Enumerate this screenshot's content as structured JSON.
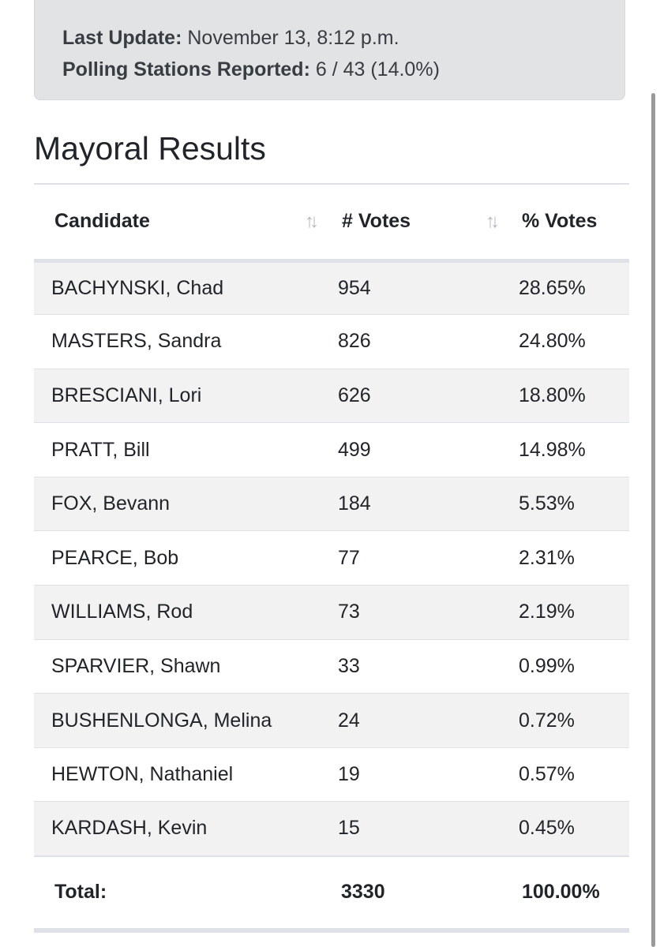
{
  "status": {
    "last_update_label": "Last Update:",
    "last_update_value": "November 13, 8:12 p.m.",
    "stations_label": "Polling Stations Reported:",
    "stations_value": "6 / 43 (14.0%)"
  },
  "title": "Mayoral Results",
  "table": {
    "headers": {
      "candidate": "Candidate",
      "votes": "# Votes",
      "percent": "% Votes",
      "sort_icon": "sort-arrows-icon"
    },
    "rows": [
      {
        "name": "BACHYNSKI, Chad",
        "votes": "954",
        "percent": "28.65%"
      },
      {
        "name": "MASTERS, Sandra",
        "votes": "826",
        "percent": "24.80%"
      },
      {
        "name": "BRESCIANI, Lori",
        "votes": "626",
        "percent": "18.80%"
      },
      {
        "name": "PRATT, Bill",
        "votes": "499",
        "percent": "14.98%"
      },
      {
        "name": "FOX, Bevann",
        "votes": "184",
        "percent": "5.53%"
      },
      {
        "name": "PEARCE, Bob",
        "votes": "77",
        "percent": "2.31%"
      },
      {
        "name": "WILLIAMS, Rod",
        "votes": "73",
        "percent": "2.19%"
      },
      {
        "name": "SPARVIER, Shawn",
        "votes": "33",
        "percent": "0.99%"
      },
      {
        "name": "BUSHENLONGA, Melina",
        "votes": "24",
        "percent": "0.72%"
      },
      {
        "name": "HEWTON, Nathaniel",
        "votes": "19",
        "percent": "0.57%"
      },
      {
        "name": "KARDASH, Kevin",
        "votes": "15",
        "percent": "0.45%"
      }
    ],
    "total": {
      "label": "Total:",
      "votes": "3330",
      "percent": "100.00%"
    }
  },
  "colors": {
    "info_background": "#e2e3e5",
    "stripe": "#f2f2f2",
    "border": "#dee2e6",
    "text": "#212529"
  }
}
